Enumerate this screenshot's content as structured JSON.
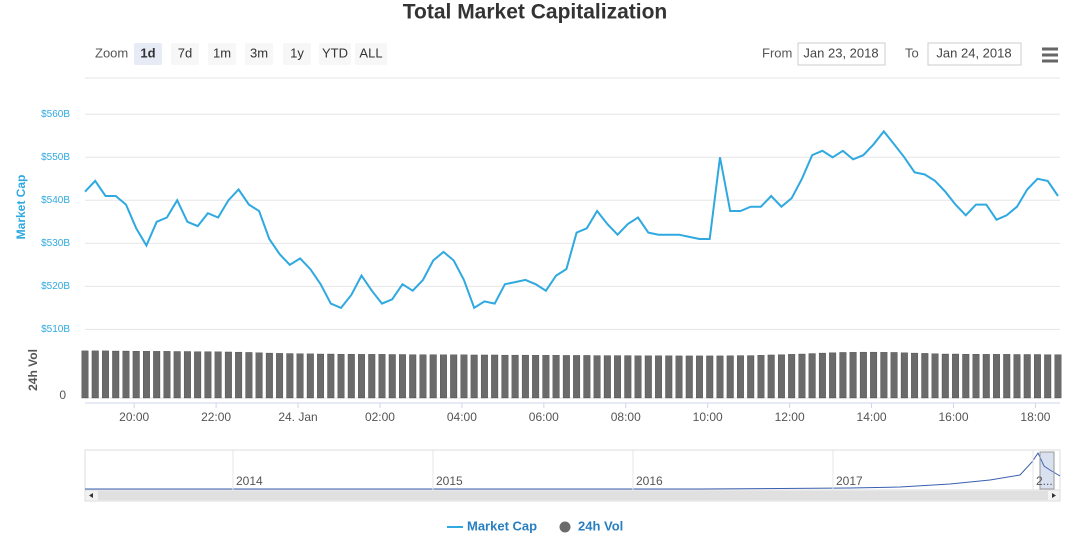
{
  "chart_data": {
    "type": "line",
    "title": "Total Market Capitalization",
    "range_selector": {
      "label": "Zoom",
      "buttons": [
        "1d",
        "7d",
        "1m",
        "3m",
        "1y",
        "YTD",
        "ALL"
      ],
      "selected": "1d"
    },
    "date_range": {
      "from_label": "From",
      "from": "Jan 23, 2018",
      "to_label": "To",
      "to": "Jan 24, 2018"
    },
    "x": [
      18.8,
      19.05,
      19.3,
      19.55,
      19.8,
      20.05,
      20.3,
      20.55,
      20.8,
      21.05,
      21.3,
      21.55,
      21.8,
      22.05,
      22.3,
      22.55,
      22.8,
      23.05,
      23.3,
      23.55,
      23.8,
      24.05,
      24.3,
      24.55,
      24.8,
      25.05,
      25.3,
      25.55,
      25.8,
      26.05,
      26.3,
      26.55,
      26.8,
      27.05,
      27.3,
      27.55,
      27.8,
      28.05,
      28.3,
      28.55,
      28.8,
      29.05,
      29.3,
      29.55,
      29.8,
      30.05,
      30.3,
      30.55,
      30.8,
      31.05,
      31.3,
      31.55,
      31.8,
      32.05,
      32.3,
      32.55,
      32.8,
      33.05,
      33.3,
      33.55,
      33.8,
      34.05,
      34.3,
      34.55,
      34.8,
      35.05,
      35.3,
      35.55,
      35.8,
      36.05,
      36.3,
      36.55,
      36.8,
      37.05,
      37.3,
      37.55,
      37.8,
      38.05,
      38.3,
      38.55,
      38.8,
      39.05,
      39.3,
      39.55,
      39.8,
      40.05,
      40.3,
      40.55,
      40.8,
      41.05,
      41.3,
      41.55,
      41.8,
      42.05,
      42.3,
      42.55
    ],
    "xlim": [
      18.8,
      42.6
    ],
    "xticks": [
      {
        "value": 20,
        "label": "20:00"
      },
      {
        "value": 22,
        "label": "22:00"
      },
      {
        "value": 24,
        "label": "24. Jan"
      },
      {
        "value": 26,
        "label": "02:00"
      },
      {
        "value": 28,
        "label": "04:00"
      },
      {
        "value": 30,
        "label": "06:00"
      },
      {
        "value": 32,
        "label": "08:00"
      },
      {
        "value": 34,
        "label": "10:00"
      },
      {
        "value": 36,
        "label": "12:00"
      },
      {
        "value": 38,
        "label": "14:00"
      },
      {
        "value": 40,
        "label": "16:00"
      },
      {
        "value": 42,
        "label": "18:00"
      }
    ],
    "ylabel": "Market Cap",
    "ylim": [
      508,
      564
    ],
    "yticks": [
      {
        "value": 510,
        "label": "$510B"
      },
      {
        "value": 520,
        "label": "$520B"
      },
      {
        "value": 530,
        "label": "$530B"
      },
      {
        "value": 540,
        "label": "$540B"
      },
      {
        "value": 550,
        "label": "$550B"
      },
      {
        "value": 560,
        "label": "$560B"
      }
    ],
    "y2label": "24h Vol",
    "y2lim": [
      0,
      35
    ],
    "y2ticks": [
      0
    ],
    "grid": true,
    "legend": "bottom",
    "series": [
      {
        "name": "Market Cap",
        "color": "#2fa9e0",
        "values": [
          542,
          544.5,
          541,
          541,
          539,
          533.5,
          529.5,
          535,
          536,
          540,
          535,
          534,
          537,
          536,
          540,
          542.5,
          539,
          537.5,
          531,
          527.5,
          525,
          526.5,
          524,
          520.5,
          516,
          515,
          518,
          522.5,
          519,
          516,
          517,
          520.5,
          519,
          521.5,
          526,
          528,
          526,
          521.5,
          515,
          516.5,
          516,
          520.5,
          521,
          521.5,
          520.5,
          519,
          522.5,
          524,
          532.5,
          533.5,
          537.5,
          534.5,
          532,
          534.5,
          536,
          532.5,
          532,
          532,
          532,
          531.5,
          531,
          531,
          550,
          537.5,
          537.5,
          538.5,
          538.5,
          541,
          538.5,
          540.5,
          545,
          550.5,
          551.5,
          550,
          551.5,
          549.5,
          550.5,
          553,
          556,
          553,
          550,
          546.5,
          546,
          544.5,
          542,
          539,
          536.5,
          539,
          539,
          535.5,
          536.5,
          538.5,
          542.5,
          545,
          544.5,
          541
        ]
      },
      {
        "name": "24h Vol",
        "color": "#6b6b6b",
        "type": "bar",
        "axis": "y2",
        "values": [
          30,
          30,
          30,
          29.9,
          29.9,
          29.8,
          29.8,
          29.7,
          29.7,
          29.6,
          29.6,
          29.5,
          29.5,
          29.4,
          29.3,
          29.2,
          29,
          28.8,
          28.6,
          28.4,
          28.3,
          28.2,
          28.1,
          28,
          28,
          27.9,
          27.9,
          27.8,
          27.8,
          27.8,
          27.7,
          27.7,
          27.6,
          27.6,
          27.6,
          27.5,
          27.5,
          27.5,
          27.4,
          27.4,
          27.4,
          27.3,
          27.3,
          27.3,
          27.2,
          27.2,
          27.2,
          27.1,
          27.1,
          27.1,
          27,
          27,
          27,
          27,
          26.9,
          26.9,
          26.9,
          26.9,
          26.8,
          26.8,
          26.8,
          26.8,
          26.8,
          26.9,
          27,
          27,
          27.2,
          27.4,
          27.6,
          27.8,
          28,
          28.3,
          28.6,
          28.8,
          29,
          29.1,
          29.2,
          29.2,
          29.1,
          29,
          28.8,
          28.6,
          28.4,
          28.2,
          28,
          28,
          27.9,
          27.9,
          27.8,
          27.8,
          27.8,
          27.7,
          27.7,
          27.7,
          27.6,
          27.6
        ]
      }
    ],
    "navigator": {
      "labels": [
        "2014",
        "2015",
        "2016",
        "2017",
        "2..."
      ]
    }
  }
}
